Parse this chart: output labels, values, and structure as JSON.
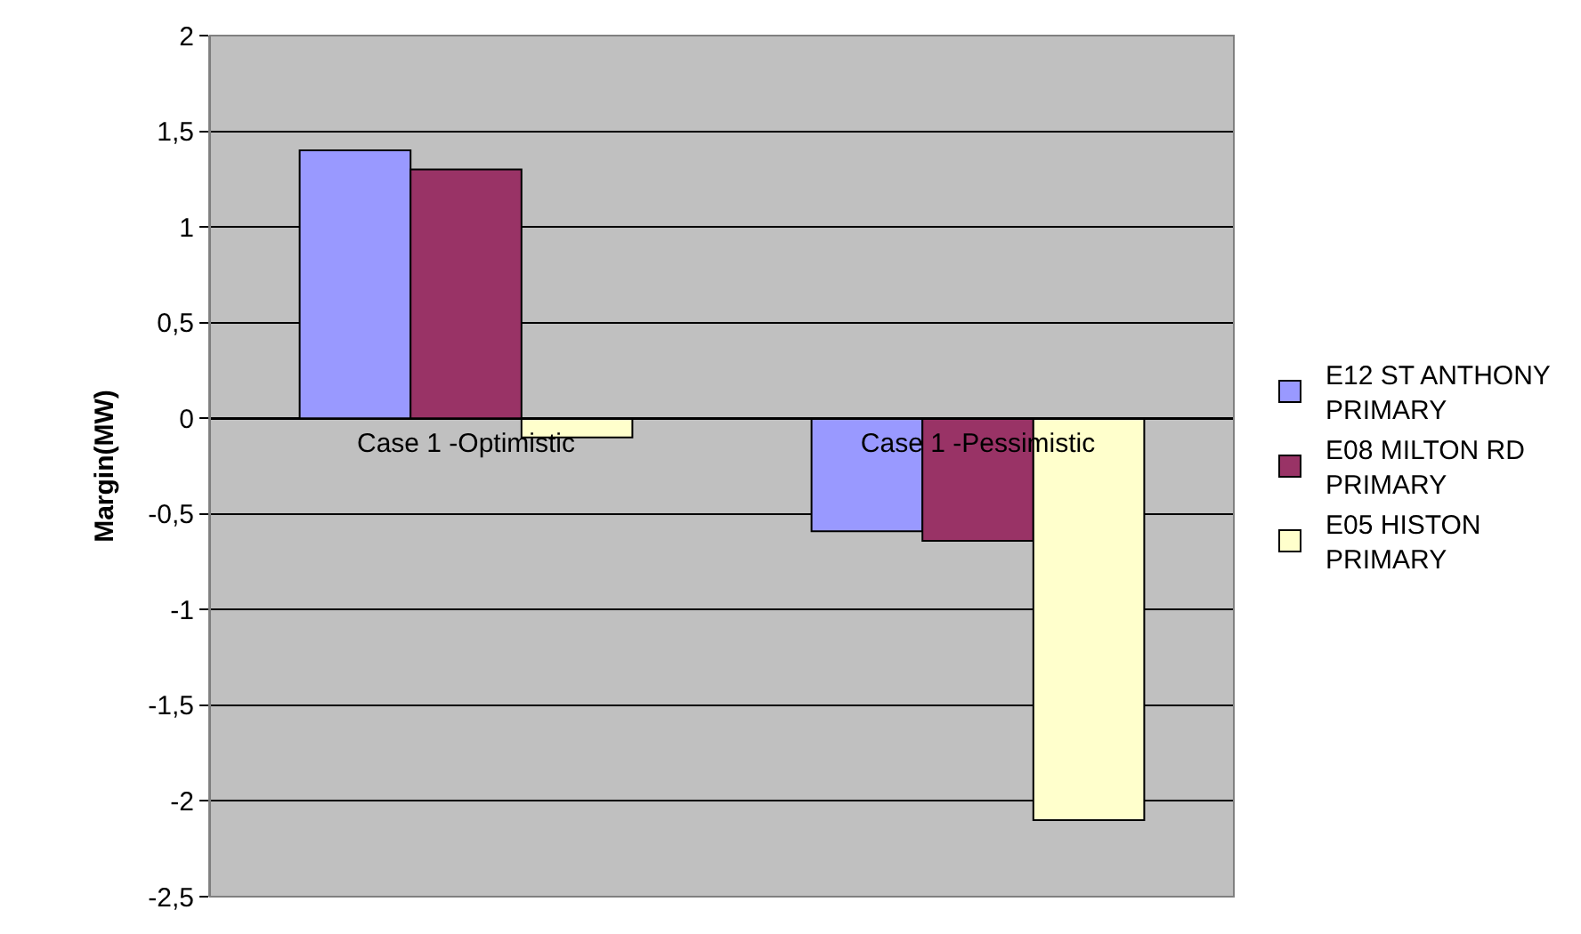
{
  "chart_data": {
    "type": "bar",
    "ylabel": "Margin(MW)",
    "categories": [
      "Case 1 -Optimistic",
      "Case 1 -Pessimistic"
    ],
    "series": [
      {
        "name": "E12 ST ANTHONY PRIMARY",
        "color": "#9999ff",
        "values": [
          1.4,
          -0.59
        ]
      },
      {
        "name": "E08 MILTON RD PRIMARY",
        "color": "#993366",
        "values": [
          1.3,
          -0.64
        ]
      },
      {
        "name": "E05 HISTON PRIMARY",
        "color": "#ffffcc",
        "values": [
          -0.1,
          -2.1
        ]
      }
    ],
    "ylim": [
      -2.5,
      2
    ],
    "yticks": [
      {
        "value": -2.5,
        "label": "-2,5"
      },
      -2,
      {
        "value": -1.5,
        "label": "-1,5"
      },
      -1,
      {
        "value": -0.5,
        "label": "-0,5"
      },
      0,
      {
        "value": 0.5,
        "label": "0,5"
      },
      1,
      {
        "value": 1.5,
        "label": "1,5"
      },
      2
    ],
    "grid": "y",
    "legend": "right"
  }
}
